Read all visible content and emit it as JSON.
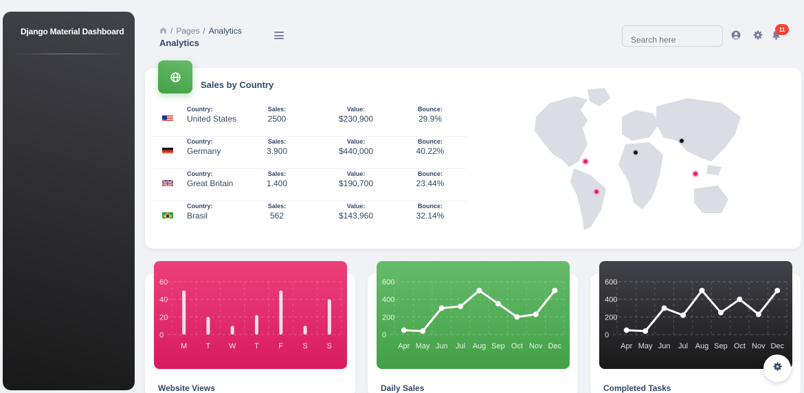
{
  "sidebar": {
    "brand": "Django Material Dashboard"
  },
  "navbar": {
    "breadcrumb": {
      "home_icon": "home-icon",
      "sep1": "/",
      "pages": "Pages",
      "sep2": "/",
      "current": "Analytics"
    },
    "page_title": "Analytics",
    "search_placeholder": "Search here",
    "notification_count": "11",
    "icons": [
      "menu-icon",
      "account-circle-icon",
      "settings-icon",
      "notifications-icon"
    ]
  },
  "sales_by_country": {
    "title": "Sales by Country",
    "icon": "globe-icon",
    "labels": {
      "country": "Country:",
      "sales": "Sales:",
      "value": "Value:",
      "bounce": "Bounce:"
    },
    "rows": [
      {
        "flag": "US",
        "country": "United States",
        "sales": "2500",
        "value": "$230,900",
        "bounce": "29.9%"
      },
      {
        "flag": "DE",
        "country": "Germany",
        "sales": "3.900",
        "value": "$440,000",
        "bounce": "40.22%"
      },
      {
        "flag": "GB",
        "country": "Great Britain",
        "sales": "1.400",
        "value": "$190,700",
        "bounce": "23.44%"
      },
      {
        "flag": "BR",
        "country": "Brasil",
        "sales": "562",
        "value": "$143,960",
        "bounce": "32.14%"
      }
    ]
  },
  "cards": [
    {
      "title": "Website Views",
      "color": "#e91e63"
    },
    {
      "title": "Daily Sales",
      "color": "#4caf50"
    },
    {
      "title": "Completed Tasks",
      "color": "#262626"
    }
  ],
  "chart_data": [
    {
      "type": "bar",
      "categories": [
        "M",
        "T",
        "W",
        "T",
        "F",
        "S",
        "S"
      ],
      "values": [
        50,
        20,
        10,
        22,
        50,
        10,
        40
      ],
      "ylim": [
        0,
        60
      ],
      "yticks": [
        0,
        20,
        40,
        60
      ],
      "grid": true
    },
    {
      "type": "line",
      "categories": [
        "Apr",
        "May",
        "Jun",
        "Jul",
        "Aug",
        "Sep",
        "Oct",
        "Nov",
        "Dec"
      ],
      "values": [
        50,
        40,
        300,
        320,
        500,
        350,
        200,
        230,
        500
      ],
      "ylim": [
        0,
        600
      ],
      "yticks": [
        0,
        200,
        400,
        600
      ],
      "grid": true
    },
    {
      "type": "line",
      "categories": [
        "Apr",
        "May",
        "Jun",
        "Jul",
        "Aug",
        "Sep",
        "Oct",
        "Nov",
        "Dec"
      ],
      "values": [
        50,
        40,
        300,
        220,
        500,
        250,
        400,
        230,
        500
      ],
      "ylim": [
        0,
        600
      ],
      "yticks": [
        0,
        200,
        400,
        600
      ],
      "grid": true
    }
  ]
}
